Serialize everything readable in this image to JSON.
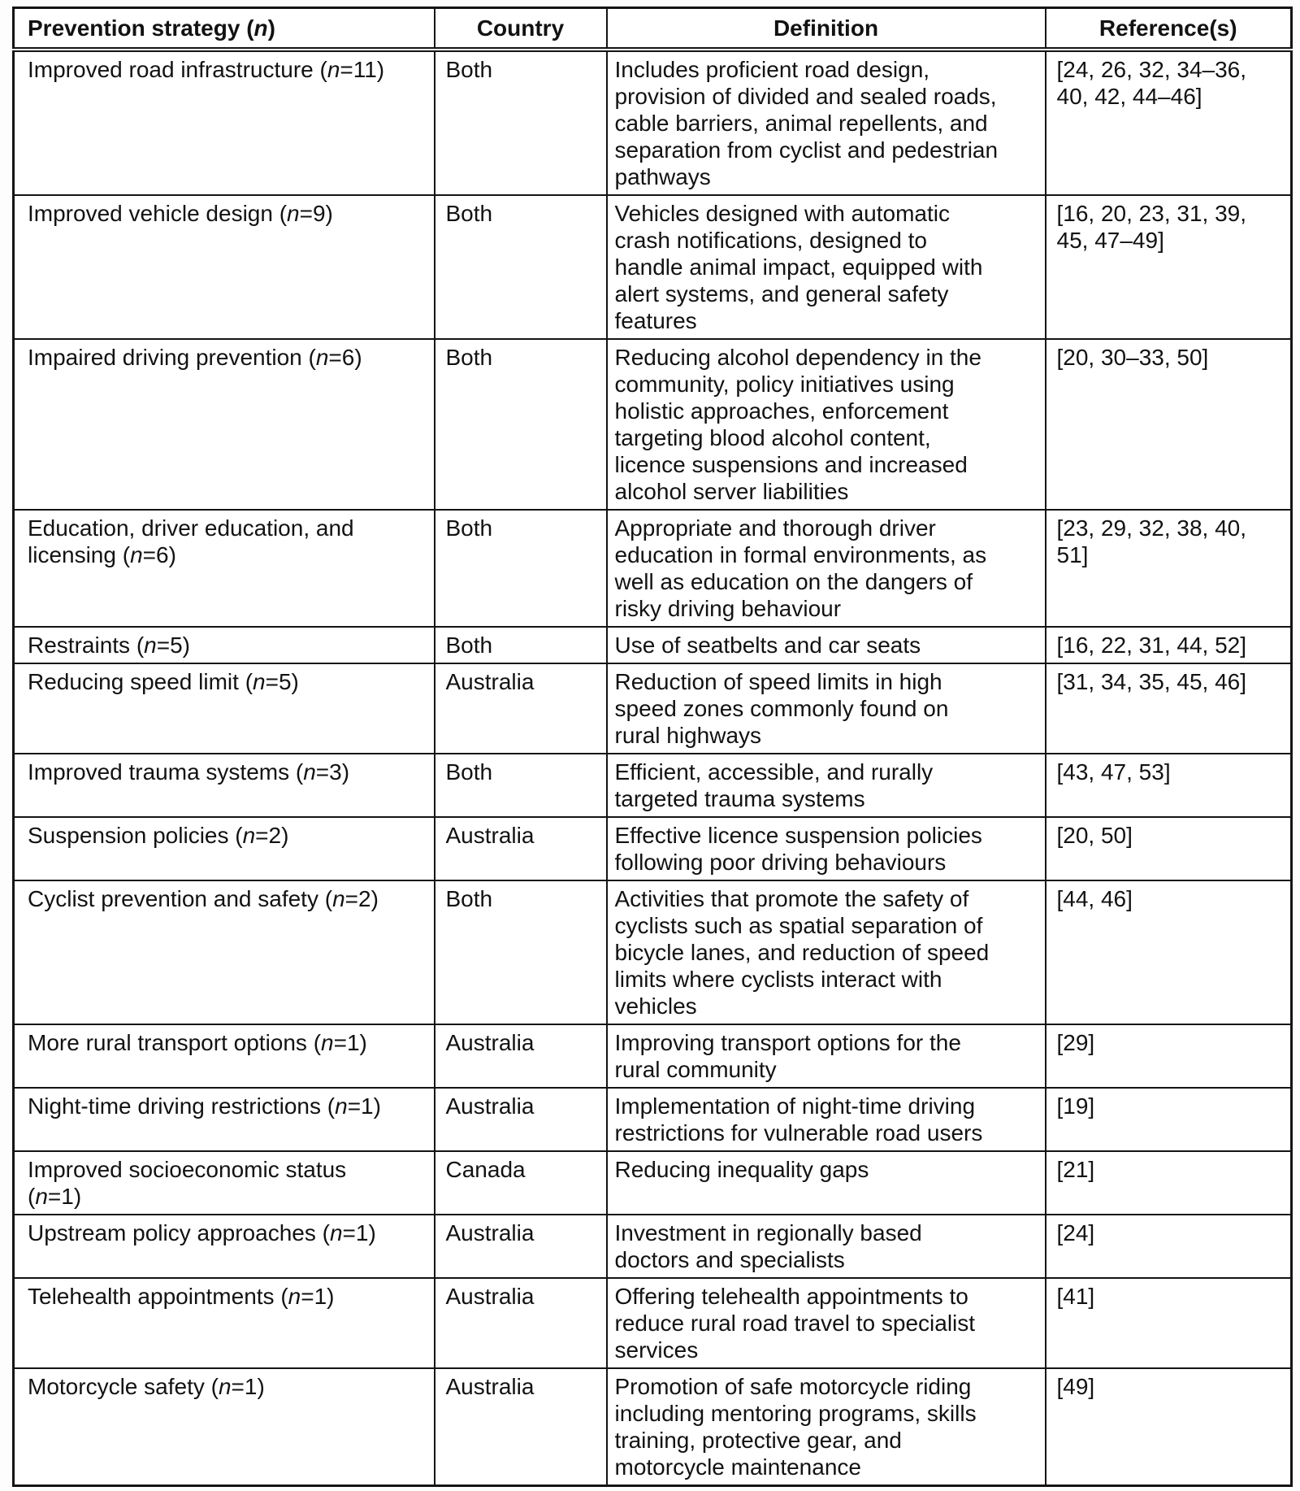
{
  "table": {
    "header": {
      "strategy": {
        "pre": "Prevention strategy (",
        "n": "n",
        "post": ")"
      },
      "country": "Country",
      "definition": "Definition",
      "references": "Reference(s)"
    },
    "rows": [
      {
        "strategy": {
          "pre": "Improved road infrastructure (",
          "n": "n",
          "post": "=11)"
        },
        "country": "Both",
        "definition": [
          "Includes proficient road design,",
          "provision of divided and sealed roads,",
          "cable barriers, animal repellents, and",
          "separation from cyclist and pedestrian",
          "pathways"
        ],
        "references": [
          "[24, 26, 32, 34–36,",
          "40, 42, 44–46]"
        ]
      },
      {
        "strategy": {
          "pre": "Improved vehicle design (",
          "n": "n",
          "post": "=9)"
        },
        "country": "Both",
        "definition": [
          "Vehicles designed with automatic",
          "crash notifications, designed to",
          "handle animal impact, equipped with",
          "alert systems, and general safety",
          "features"
        ],
        "references": [
          "[16, 20, 23, 31, 39,",
          "45, 47–49]"
        ]
      },
      {
        "strategy": {
          "pre": "Impaired driving prevention (",
          "n": "n",
          "post": "=6)"
        },
        "country": "Both",
        "definition": [
          "Reducing alcohol dependency in the",
          "community, policy initiatives using",
          "holistic approaches, enforcement",
          "targeting blood alcohol content,",
          "licence suspensions and increased",
          "alcohol server liabilities"
        ],
        "references": [
          "[20, 30–33, 50]"
        ]
      },
      {
        "strategy": {
          "pre": [
            "Education, driver education, and",
            "licensing ("
          ],
          "n": "n",
          "post": "=6)"
        },
        "country": "Both",
        "definition": [
          "Appropriate and thorough driver",
          "education in formal environments, as",
          "well as education on the dangers of",
          "risky driving behaviour"
        ],
        "references": [
          "[23, 29, 32, 38, 40,",
          "51]"
        ]
      },
      {
        "strategy": {
          "pre": "Restraints (",
          "n": "n",
          "post": "=5)"
        },
        "country": "Both",
        "definition": [
          "Use of seatbelts and car seats"
        ],
        "references": [
          "[16, 22, 31, 44, 52]"
        ]
      },
      {
        "strategy": {
          "pre": "Reducing speed limit (",
          "n": "n",
          "post": "=5)"
        },
        "country": "Australia",
        "definition": [
          "Reduction of speed limits in high",
          "speed zones commonly found on",
          "rural highways"
        ],
        "references": [
          "[31, 34, 35, 45, 46]"
        ]
      },
      {
        "strategy": {
          "pre": "Improved trauma systems (",
          "n": "n",
          "post": "=3)"
        },
        "country": "Both",
        "definition": [
          "Efficient, accessible, and rurally",
          "targeted trauma systems"
        ],
        "references": [
          "[43, 47, 53]"
        ]
      },
      {
        "strategy": {
          "pre": "Suspension policies (",
          "n": "n",
          "post": "=2)"
        },
        "country": "Australia",
        "definition": [
          "Effective licence suspension policies",
          "following poor driving behaviours"
        ],
        "references": [
          "[20, 50]"
        ]
      },
      {
        "strategy": {
          "pre": "Cyclist prevention and safety (",
          "n": "n",
          "post": "=2)"
        },
        "country": "Both",
        "definition": [
          "Activities that promote the safety of",
          "cyclists such as spatial separation of",
          "bicycle lanes, and reduction of speed",
          "limits where cyclists interact with",
          "vehicles"
        ],
        "references": [
          "[44, 46]"
        ]
      },
      {
        "strategy": {
          "pre": "More rural transport options (",
          "n": "n",
          "post": "=1)"
        },
        "country": "Australia",
        "definition": [
          "Improving transport options for the",
          "rural community"
        ],
        "references": [
          "[29]"
        ]
      },
      {
        "strategy": {
          "pre": "Night-time driving restrictions (",
          "n": "n",
          "post": "=1)"
        },
        "country": "Australia",
        "definition": [
          "Implementation of night-time driving",
          "restrictions for vulnerable road users"
        ],
        "references": [
          "[19]"
        ]
      },
      {
        "strategy": {
          "pre": [
            "Improved socioeconomic status",
            "("
          ],
          "n": "n",
          "post": "=1)"
        },
        "country": "Canada",
        "definition": [
          "Reducing inequality gaps"
        ],
        "references": [
          "[21]"
        ]
      },
      {
        "strategy": {
          "pre": "Upstream policy approaches (",
          "n": "n",
          "post": "=1)"
        },
        "country": "Australia",
        "definition": [
          "Investment in regionally based",
          "doctors and specialists"
        ],
        "references": [
          "[24]"
        ]
      },
      {
        "strategy": {
          "pre": "Telehealth appointments (",
          "n": "n",
          "post": "=1)"
        },
        "country": "Australia",
        "definition": [
          "Offering telehealth appointments to",
          "reduce rural road travel to specialist",
          "services"
        ],
        "references": [
          "[41]"
        ]
      },
      {
        "strategy": {
          "pre": "Motorcycle safety (",
          "n": "n",
          "post": "=1)"
        },
        "country": "Australia",
        "definition": [
          "Promotion of safe motorcycle riding",
          "including mentoring programs, skills",
          "training, protective gear, and",
          "motorcycle maintenance"
        ],
        "references": [
          "[49]"
        ]
      }
    ]
  }
}
